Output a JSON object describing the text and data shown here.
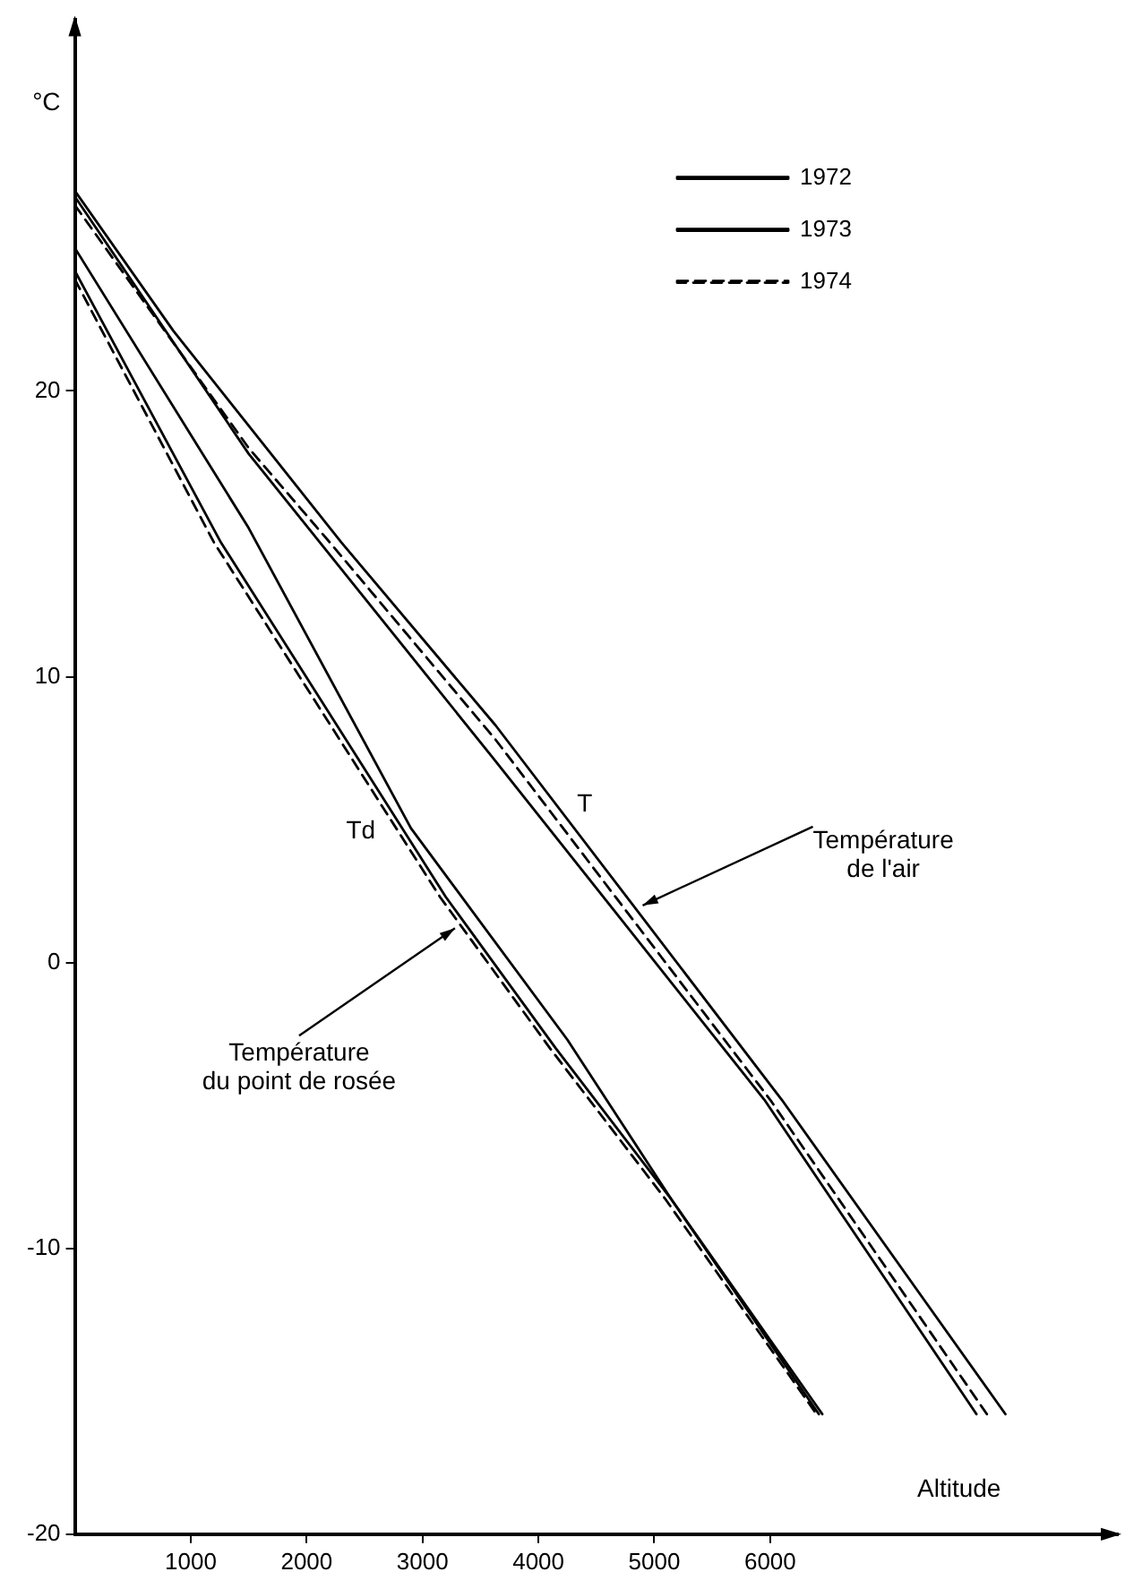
{
  "chart_data": {
    "type": "line",
    "xlabel": "Altitude",
    "ylabel": "°C",
    "xlim": [
      0,
      9000
    ],
    "ylim": [
      -20,
      33
    ],
    "xticks": [
      1000,
      2000,
      3000,
      4000,
      5000,
      6000
    ],
    "yticks": [
      -20,
      -10,
      0,
      10,
      20
    ],
    "grid": false,
    "legend": "top right",
    "marker": "none",
    "series": [
      {
        "name": "1972",
        "color": "#000000",
        "line_style": "solid",
        "x": [
          0,
          1500,
          3600,
          5950,
          7780
        ],
        "values": [
          26.8,
          17.8,
          7.2,
          -4.8,
          -15.8
        ]
      },
      {
        "name": "1973",
        "color": "#000000",
        "line_style": "solid",
        "x": [
          0,
          850,
          2300,
          3630,
          6100,
          8030
        ],
        "values": [
          27,
          22.1,
          14.7,
          8.3,
          -4.8,
          -15.8
        ]
      },
      {
        "name": "1974",
        "color": "#000000",
        "line_style": "dashed",
        "x": [
          0,
          1500,
          2200,
          3630,
          6000,
          7870
        ],
        "values": [
          26.5,
          18,
          14.7,
          7.8,
          -4.8,
          -15.8
        ]
      },
      {
        "color": "#000000",
        "line_style": "solid",
        "x": [
          0,
          1500,
          2900,
          4250,
          5150,
          6450
        ],
        "values": [
          25,
          15.2,
          4.7,
          -2.7,
          -8.3,
          -15.8
        ]
      },
      {
        "color": "#000000",
        "line_style": "solid",
        "x": [
          0,
          1260,
          3200,
          4150,
          5150,
          6420
        ],
        "values": [
          24.2,
          14.7,
          2.3,
          -3,
          -8.3,
          -15.8
        ]
      },
      {
        "color": "#000000",
        "line_style": "dashed",
        "x": [
          0,
          1200,
          3150,
          4100,
          5100,
          6400
        ],
        "values": [
          23.9,
          14.7,
          2.3,
          -3,
          -8.3,
          -15.8
        ]
      }
    ],
    "annotations": [
      {
        "text": "T",
        "x": 4400,
        "y": 4.2
      },
      {
        "text": "Td",
        "x": 2900,
        "y": 4.7
      },
      {
        "text": "Température\nde l'air",
        "x": 4900,
        "y": 2
      },
      {
        "text": "Température\ndu point de rosée",
        "x": 3280,
        "y": 1.2
      }
    ]
  }
}
